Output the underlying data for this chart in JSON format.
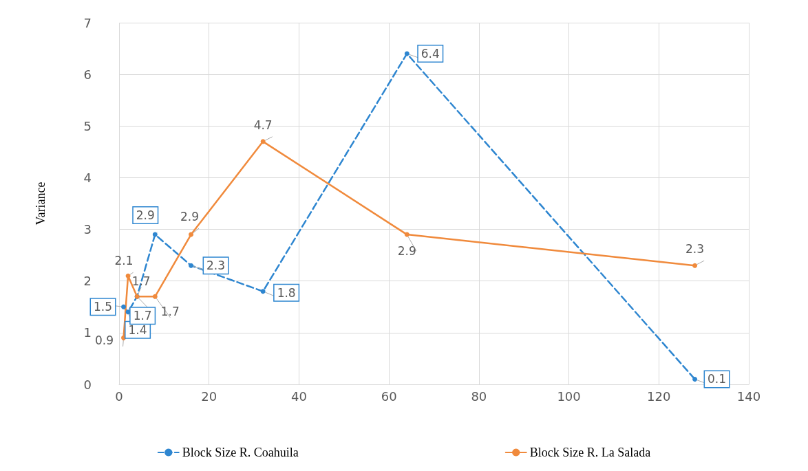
{
  "chart_data": {
    "type": "line",
    "ylabel": "Variance",
    "xlim": [
      0,
      140
    ],
    "xticks": [
      0,
      20,
      40,
      60,
      80,
      100,
      120,
      140
    ],
    "ylim": [
      0,
      7
    ],
    "yticks": [
      0,
      1,
      2,
      3,
      4,
      5,
      6,
      7
    ],
    "grid": true,
    "legend": "bottom",
    "marker": "circle",
    "data_labels": true,
    "series": [
      {
        "name": "Block Size R. Coahuila",
        "color": "#2e86d0",
        "line_style": "dashed",
        "x": [
          1,
          2,
          4,
          8,
          16,
          32,
          64,
          128
        ],
        "values": [
          1.5,
          1.4,
          1.7,
          2.9,
          2.3,
          1.8,
          6.4,
          0.1
        ]
      },
      {
        "name": "Block Size R. La Salada",
        "color": "#f08a3c",
        "line_style": "solid",
        "x": [
          1,
          2,
          4,
          8,
          16,
          32,
          64,
          128
        ],
        "values": [
          0.9,
          2.1,
          1.7,
          1.7,
          2.9,
          4.7,
          2.9,
          2.3
        ]
      }
    ]
  }
}
